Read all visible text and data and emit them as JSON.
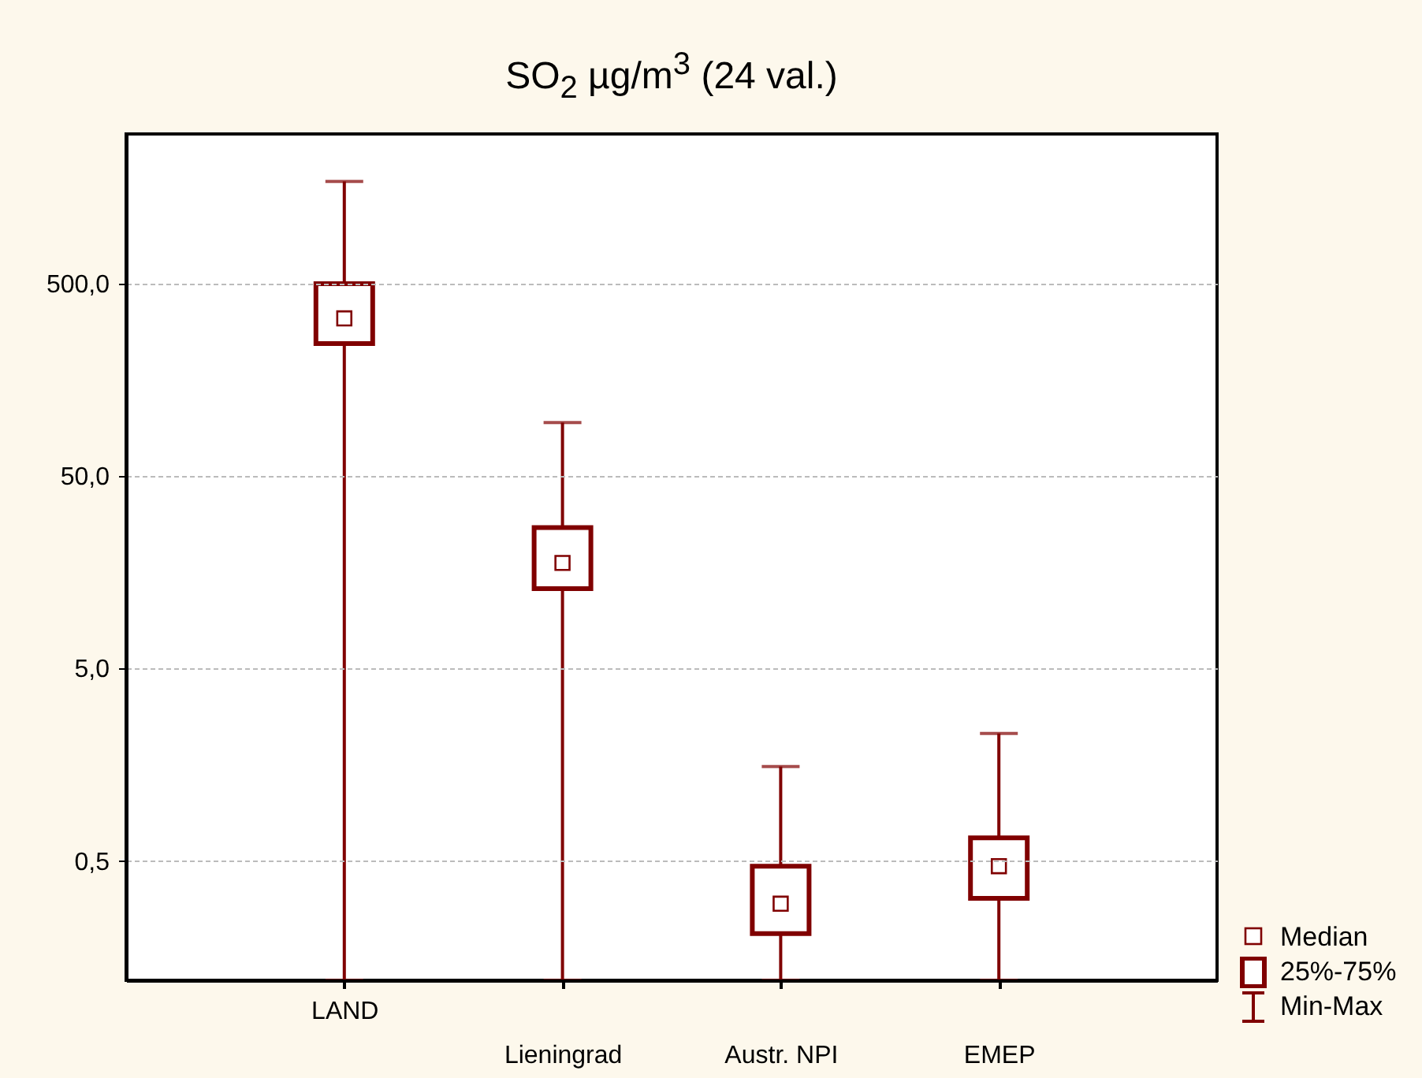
{
  "chart_data": {
    "type": "box",
    "title": "SO$_{2}$ µg/m$^{3}$ (24 val.)",
    "categories": [
      "LAND",
      "Lieningrad",
      "Austr. NPI",
      "EMEP"
    ],
    "boxes": [
      {
        "low": 0.12,
        "q1": 244,
        "median": 330,
        "q3": 500,
        "high": 1700
      },
      {
        "low": 0.12,
        "q1": 13,
        "median": 17.7,
        "q3": 27,
        "high": 95
      },
      {
        "low": 0.12,
        "q1": 0.21,
        "median": 0.3,
        "q3": 0.47,
        "high": 1.55
      },
      {
        "low": 0.12,
        "q1": 0.32,
        "median": 0.47,
        "q3": 0.66,
        "high": 2.3
      }
    ],
    "color": "#800000",
    "log": "y",
    "ylim": [
      0.12,
      3000
    ],
    "yticks": [
      {
        "value": 0.5,
        "label": "0,5"
      },
      {
        "value": 5,
        "label": "5,0"
      },
      {
        "value": 50,
        "label": "50,0"
      },
      {
        "value": 500,
        "label": "500,0"
      }
    ],
    "grid": "y",
    "annotations": [
      "Median",
      "25%-75%",
      "Min-Max"
    ]
  }
}
